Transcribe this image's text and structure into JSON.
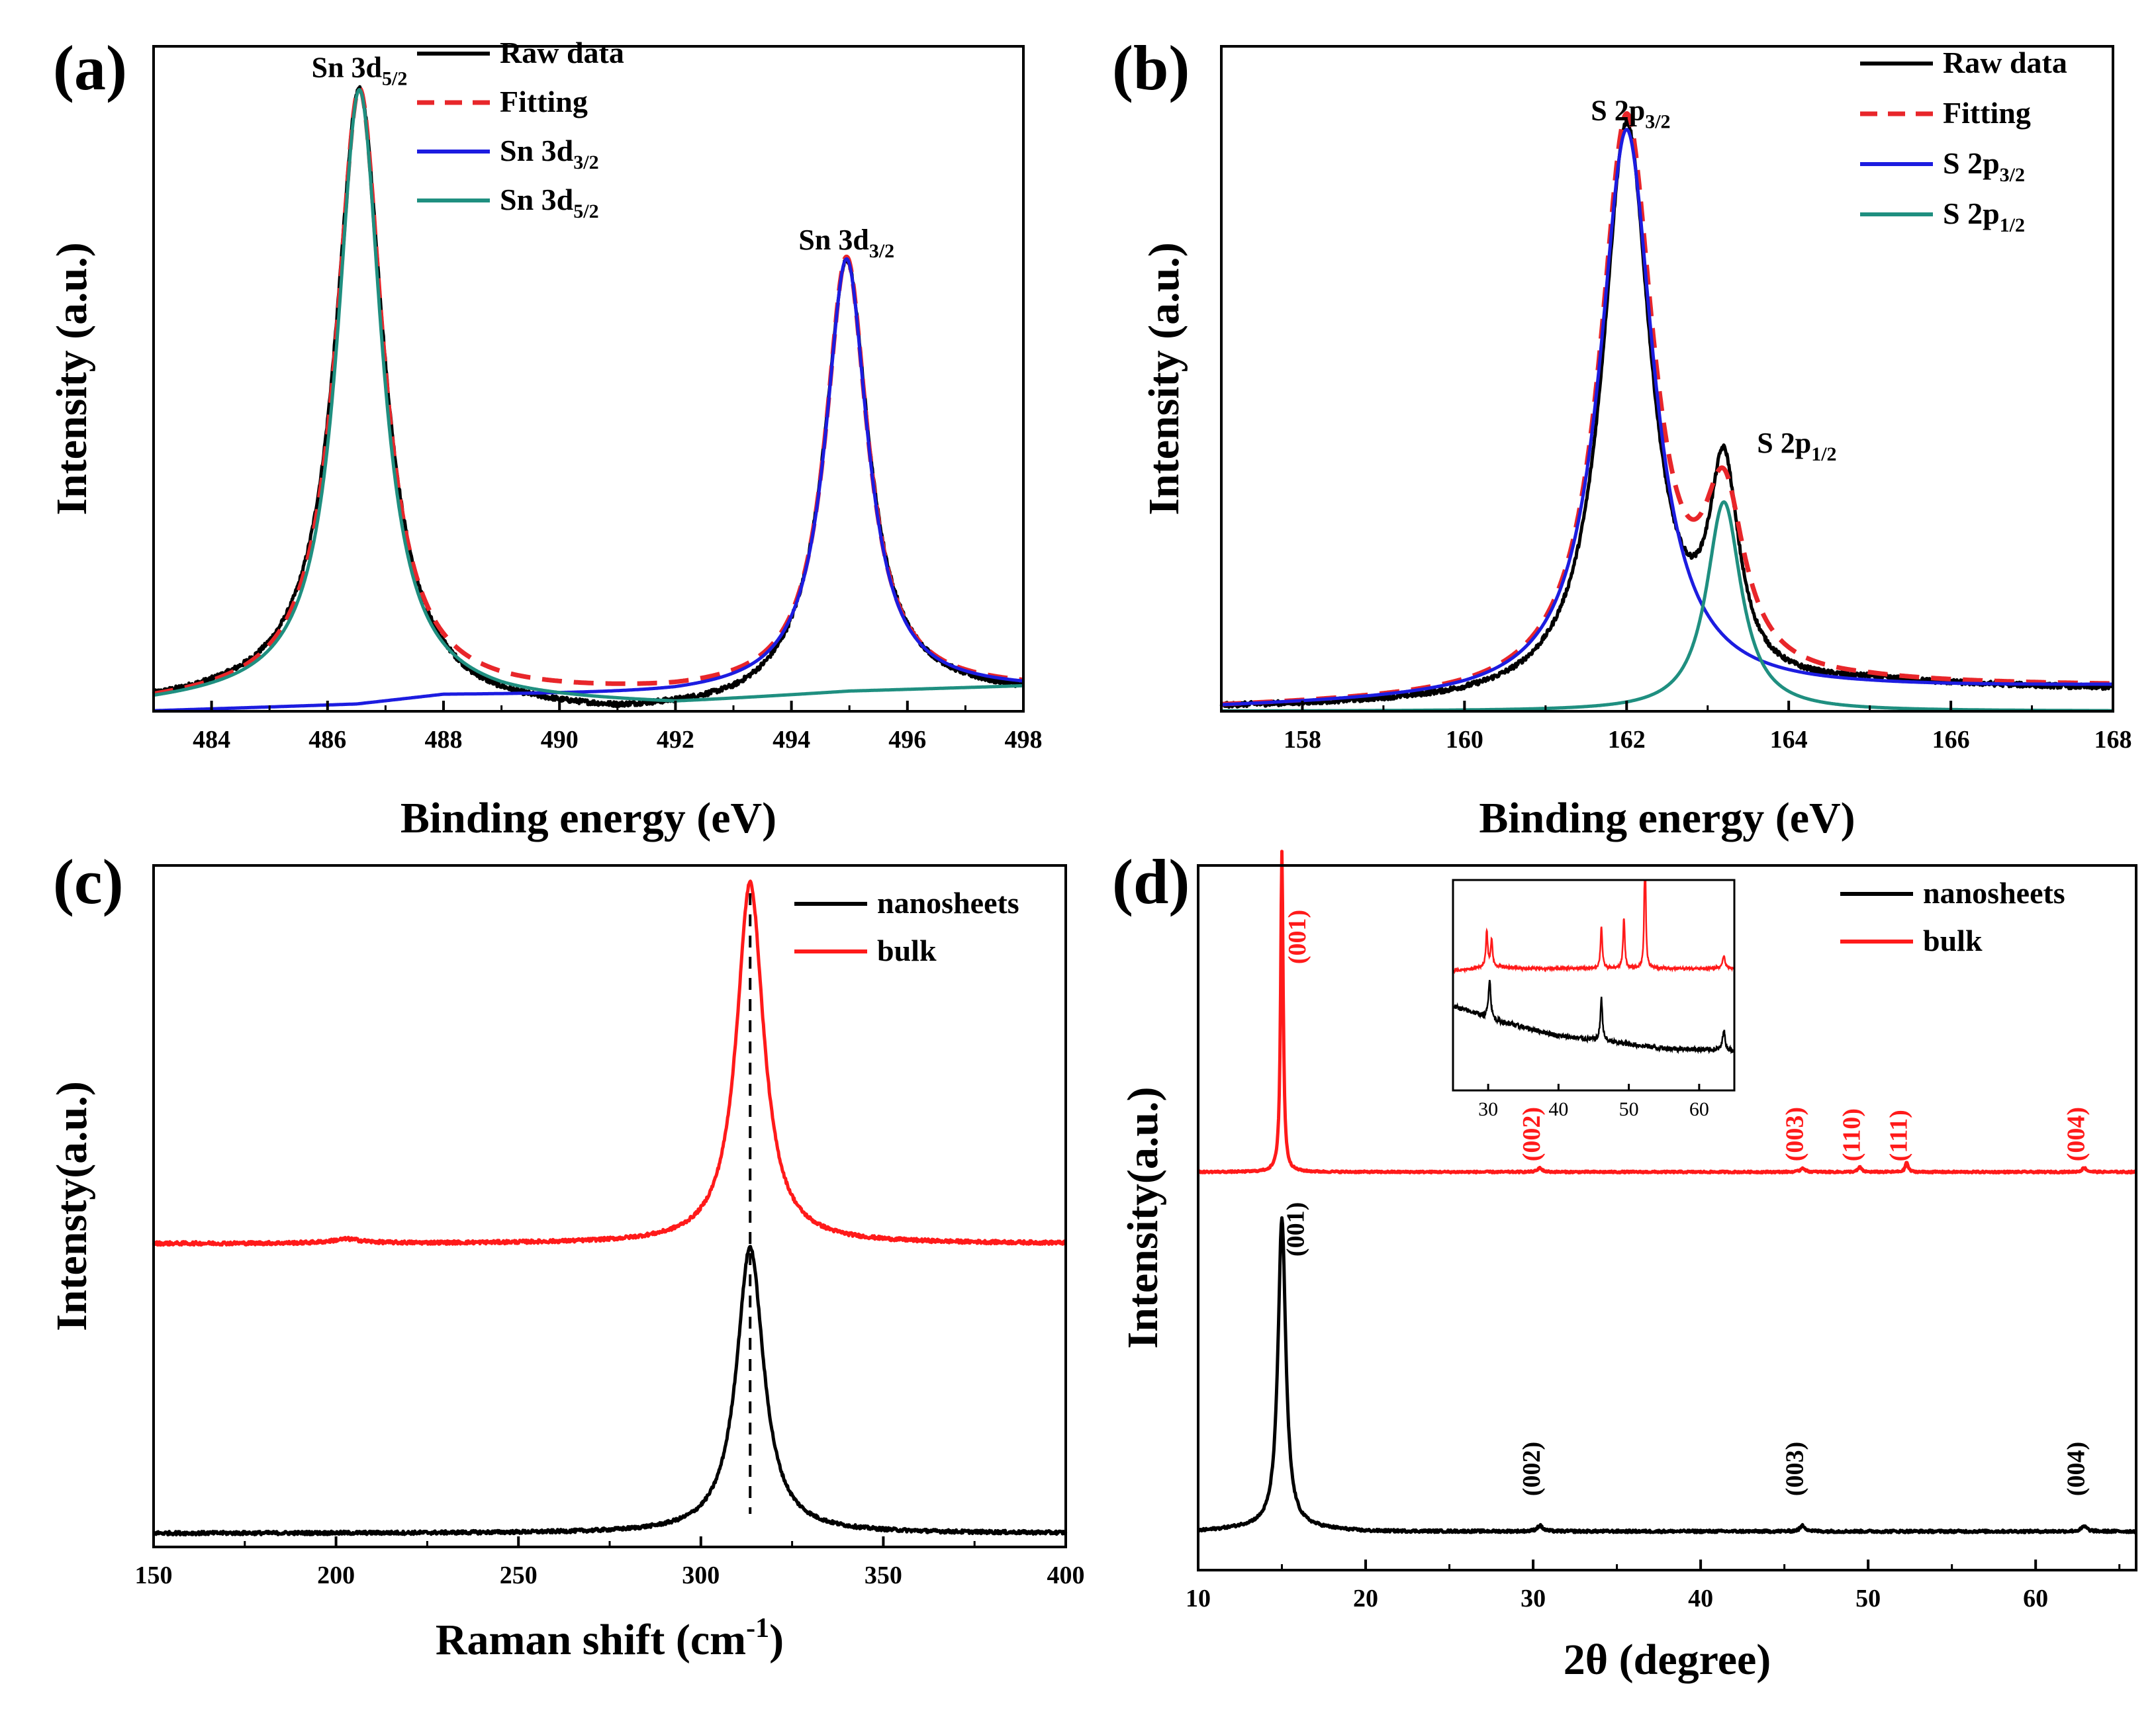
{
  "colors": {
    "raw": "#000000",
    "fitting": "#e8262a",
    "blue": "#1c1ce0",
    "teal": "#1f8f80",
    "nanosheets": "#000000",
    "bulk": "#ff1a1a",
    "axis": "#000000"
  },
  "chart_data": [
    {
      "id": "a",
      "panel_label": "(a)",
      "type": "line",
      "title": "",
      "xlabel": "Binding energy (eV)",
      "ylabel": "Intensity (a.u.)",
      "xlim": [
        483,
        498
      ],
      "ylim": [
        0,
        1.08
      ],
      "xticks": [
        484,
        486,
        488,
        490,
        492,
        494,
        496,
        498
      ],
      "xticklabels": [
        "484",
        "486",
        "488",
        "490",
        "492",
        "494",
        "496",
        "498"
      ],
      "legend": {
        "position": "top-center",
        "entries": [
          {
            "main": "Raw data",
            "sub": "",
            "style": "solid",
            "color_key": "raw"
          },
          {
            "main": "Fitting",
            "sub": "",
            "style": "dashed",
            "color_key": "fitting"
          },
          {
            "main": "Sn 3d",
            "sub": "3/2",
            "style": "solid",
            "color_key": "blue"
          },
          {
            "main": "Sn 3d",
            "sub": "5/2",
            "style": "solid",
            "color_key": "teal"
          }
        ]
      },
      "annotations": [
        {
          "main": "Sn 3d",
          "sub": "5/2",
          "x": 486.55,
          "y": 1.03
        },
        {
          "main": "Sn 3d",
          "sub": "3/2",
          "x": 494.95,
          "y": 0.75
        }
      ],
      "series": [
        {
          "name": "Raw data",
          "color_key": "raw",
          "style": "solid",
          "peaks": [
            [
              486.55,
              0.98,
              0.5
            ],
            [
              494.95,
              0.7,
              0.46
            ]
          ],
          "baseline": [
            [
              483,
              0.01
            ],
            [
              486.5,
              0.03
            ],
            [
              488.5,
              0.0
            ],
            [
              491,
              -0.01
            ],
            [
              493,
              0.0
            ],
            [
              495,
              0.03
            ],
            [
              498,
              0.025
            ]
          ],
          "noise": 0.004
        },
        {
          "name": "Fitting",
          "color_key": "fitting",
          "style": "dashed",
          "peaks": [
            [
              486.55,
              0.98,
              0.48
            ],
            [
              494.95,
              0.7,
              0.44
            ]
          ],
          "baseline": [
            [
              483,
              0.01
            ],
            [
              486.5,
              0.03
            ],
            [
              489,
              0.025
            ],
            [
              492,
              0.025
            ],
            [
              495,
              0.035
            ],
            [
              498,
              0.035
            ]
          ],
          "noise": 0
        },
        {
          "name": "Sn 3d3/2",
          "color_key": "blue",
          "style": "solid",
          "peaks": [
            [
              494.95,
              0.7,
              0.44
            ]
          ],
          "baseline": [
            [
              483,
              0.0
            ],
            [
              486.5,
              0.01
            ],
            [
              488,
              0.025
            ],
            [
              492,
              0.025
            ],
            [
              495,
              0.035
            ],
            [
              498,
              0.035
            ]
          ],
          "noise": 0
        },
        {
          "name": "Sn 3d5/2",
          "color_key": "teal",
          "style": "solid",
          "peaks": [
            [
              486.55,
              0.98,
              0.46
            ]
          ],
          "baseline": [
            [
              483,
              0.01
            ],
            [
              486.5,
              0.03
            ],
            [
              489,
              0.015
            ],
            [
              492,
              0.01
            ],
            [
              495,
              0.03
            ],
            [
              498,
              0.04
            ]
          ],
          "noise": 0
        }
      ]
    },
    {
      "id": "b",
      "panel_label": "(b)",
      "type": "line",
      "title": "",
      "xlabel": "Binding energy (eV)",
      "ylabel": "Intensity (a.u.)",
      "xlim": [
        157,
        168
      ],
      "ylim": [
        0,
        1.08
      ],
      "xticks": [
        158,
        160,
        162,
        164,
        166,
        168
      ],
      "xticklabels": [
        "158",
        "160",
        "162",
        "164",
        "166",
        "168"
      ],
      "legend": {
        "position": "top-right",
        "entries": [
          {
            "main": "Raw data",
            "sub": "",
            "style": "solid",
            "color_key": "raw"
          },
          {
            "main": "Fitting",
            "sub": "",
            "style": "dashed",
            "color_key": "fitting"
          },
          {
            "main": "S 2p",
            "sub": "3/2",
            "style": "solid",
            "color_key": "blue"
          },
          {
            "main": "S 2p",
            "sub": "1/2",
            "style": "solid",
            "color_key": "teal"
          }
        ]
      },
      "annotations": [
        {
          "main": "S 2p",
          "sub": "3/2",
          "x": 162.05,
          "y": 0.96
        },
        {
          "main": "S 2p",
          "sub": "1/2",
          "x": 164.1,
          "y": 0.42
        }
      ],
      "series": [
        {
          "name": "Raw data",
          "color_key": "raw",
          "style": "solid",
          "peaks": [
            [
              162.0,
              0.93,
              0.36
            ],
            [
              163.2,
              0.33,
              0.22
            ]
          ],
          "baseline": [
            [
              157,
              0.005
            ],
            [
              160,
              0.01
            ],
            [
              163,
              0.02
            ],
            [
              165,
              0.04
            ],
            [
              168,
              0.035
            ]
          ],
          "noise": 0.004
        },
        {
          "name": "Fitting",
          "color_key": "fitting",
          "style": "dashed",
          "peaks": [
            [
              162.0,
              0.93,
              0.4
            ],
            [
              163.2,
              0.27,
              0.3
            ]
          ],
          "baseline": [
            [
              157,
              0.005
            ],
            [
              160,
              0.015
            ],
            [
              163,
              0.03
            ],
            [
              165,
              0.04
            ],
            [
              168,
              0.04
            ]
          ],
          "noise": 0
        },
        {
          "name": "S 2p3/2",
          "color_key": "blue",
          "style": "solid",
          "peaks": [
            [
              162.0,
              0.92,
              0.4
            ]
          ],
          "baseline": [
            [
              157,
              0.005
            ],
            [
              160,
              0.015
            ],
            [
              163,
              0.03
            ],
            [
              165,
              0.035
            ],
            [
              168,
              0.04
            ]
          ],
          "noise": 0
        },
        {
          "name": "S 2p1/2",
          "color_key": "teal",
          "style": "solid",
          "peaks": [
            [
              163.2,
              0.34,
              0.26
            ]
          ],
          "baseline": [
            [
              157,
              0.0
            ],
            [
              160,
              0.0
            ],
            [
              163,
              0.0
            ],
            [
              168,
              0.0
            ]
          ],
          "noise": 0
        }
      ]
    },
    {
      "id": "c",
      "panel_label": "(c)",
      "type": "line",
      "title": "",
      "xlabel": "Raman shift (cm",
      "xlabel_sup": "-1",
      "xlabel_end": ")",
      "ylabel": "Intensty(a.u.)",
      "xlim": [
        150,
        400
      ],
      "ylim": [
        0,
        1.0
      ],
      "xticks": [
        150,
        200,
        250,
        300,
        350,
        400
      ],
      "xticklabels": [
        "150",
        "200",
        "250",
        "300",
        "350",
        "400"
      ],
      "reference_line_x": 313.5,
      "legend": {
        "position": "top-right",
        "entries": [
          {
            "main": "nanosheets",
            "sub": "",
            "style": "solid",
            "color_key": "nanosheets"
          },
          {
            "main": "bulk",
            "sub": "",
            "style": "solid",
            "color_key": "bulk"
          }
        ]
      },
      "annotations": [],
      "series": [
        {
          "name": "nanosheets",
          "color_key": "nanosheets",
          "style": "solid",
          "peaks": [
            [
              313.5,
              0.42,
              4.5
            ]
          ],
          "baseline": [
            [
              150,
              0.02
            ],
            [
              400,
              0.02
            ]
          ],
          "noise": 0.0025
        },
        {
          "name": "bulk",
          "color_key": "bulk",
          "style": "solid",
          "peaks": [
            [
              313.5,
              0.53,
              4.5
            ],
            [
              203,
              0.006,
              5
            ]
          ],
          "baseline": [
            [
              150,
              0.445
            ],
            [
              400,
              0.445
            ]
          ],
          "noise": 0.0025
        }
      ]
    },
    {
      "id": "d",
      "panel_label": "(d)",
      "type": "line",
      "title": "",
      "xlabel": "2θ (degree)",
      "ylabel": "Intensity(a.u.)",
      "xlim": [
        10,
        66
      ],
      "ylim": [
        0,
        1.0
      ],
      "xticks": [
        10,
        20,
        30,
        40,
        50,
        60
      ],
      "xticklabels": [
        "10",
        "20",
        "30",
        "40",
        "50",
        "60"
      ],
      "legend": {
        "position": "top-right",
        "entries": [
          {
            "main": "nanosheets",
            "sub": "",
            "style": "solid",
            "color_key": "nanosheets"
          },
          {
            "main": "bulk",
            "sub": "",
            "style": "solid",
            "color_key": "bulk"
          }
        ]
      },
      "hkl_labels": [
        {
          "text": "(001)",
          "x": 16.4,
          "y": 0.86,
          "color_key": "bulk"
        },
        {
          "text": "(002)",
          "x": 30.4,
          "y": 0.58,
          "color_key": "bulk"
        },
        {
          "text": "(003)",
          "x": 46.1,
          "y": 0.58,
          "color_key": "bulk"
        },
        {
          "text": "(110)",
          "x": 49.5,
          "y": 0.58,
          "color_key": "bulk"
        },
        {
          "text": "(111)",
          "x": 52.3,
          "y": 0.58,
          "color_key": "bulk"
        },
        {
          "text": "(004)",
          "x": 62.9,
          "y": 0.58,
          "color_key": "bulk"
        },
        {
          "text": "(001)",
          "x": 16.3,
          "y": 0.445,
          "color_key": "nanosheets"
        },
        {
          "text": "(002)",
          "x": 30.4,
          "y": 0.105,
          "color_key": "nanosheets"
        },
        {
          "text": "(003)",
          "x": 46.1,
          "y": 0.105,
          "color_key": "nanosheets"
        },
        {
          "text": "(004)",
          "x": 62.9,
          "y": 0.105,
          "color_key": "nanosheets"
        }
      ],
      "series": [
        {
          "name": "nanosheets",
          "color_key": "nanosheets",
          "style": "solid",
          "peaks": [
            [
              15.0,
              0.44,
              0.28
            ],
            [
              30.4,
              0.008,
              0.2
            ],
            [
              46.1,
              0.008,
              0.2
            ],
            [
              62.9,
              0.007,
              0.2
            ]
          ],
          "baseline": [
            [
              10,
              0.055
            ],
            [
              13,
              0.06
            ],
            [
              16,
              0.06
            ],
            [
              20,
              0.055
            ],
            [
              66,
              0.055
            ]
          ],
          "noise": 0.0018
        },
        {
          "name": "bulk",
          "color_key": "bulk",
          "style": "solid",
          "peaks": [
            [
              15.0,
              0.455,
              0.09
            ],
            [
              30.4,
              0.006,
              0.15
            ],
            [
              46.1,
              0.006,
              0.15
            ],
            [
              49.5,
              0.007,
              0.12
            ],
            [
              52.3,
              0.014,
              0.1
            ],
            [
              62.9,
              0.006,
              0.15
            ]
          ],
          "baseline": [
            [
              10,
              0.565
            ],
            [
              66,
              0.565
            ]
          ],
          "noise": 0.0012
        }
      ],
      "inset": {
        "xlim": [
          25,
          65
        ],
        "ylim": [
          0,
          1.0
        ],
        "xticks": [
          30,
          40,
          50,
          60
        ],
        "xticklabels": [
          "30",
          "40",
          "50",
          "60"
        ],
        "series": [
          {
            "name": "bulk",
            "color_key": "bulk",
            "style": "solid",
            "peaks": [
              [
                29.8,
                0.17,
                0.15
              ],
              [
                30.5,
                0.13,
                0.15
              ],
              [
                46.1,
                0.2,
                0.15
              ],
              [
                49.3,
                0.24,
                0.15
              ],
              [
                52.3,
                0.64,
                0.12
              ],
              [
                63.5,
                0.06,
                0.2
              ]
            ],
            "baseline": [
              [
                25,
                0.57
              ],
              [
                27,
                0.575
              ],
              [
                30,
                0.59
              ],
              [
                35,
                0.58
              ],
              [
                45,
                0.58
              ],
              [
                65,
                0.58
              ]
            ],
            "noise": 0.006
          },
          {
            "name": "nanosheets",
            "color_key": "nanosheets",
            "style": "solid",
            "peaks": [
              [
                30.2,
                0.19,
                0.2
              ],
              [
                46.1,
                0.2,
                0.18
              ],
              [
                63.5,
                0.1,
                0.2
              ]
            ],
            "baseline": [
              [
                25,
                0.4
              ],
              [
                28,
                0.37
              ],
              [
                30,
                0.34
              ],
              [
                35,
                0.3
              ],
              [
                40,
                0.26
              ],
              [
                45,
                0.24
              ],
              [
                55,
                0.2
              ],
              [
                65,
                0.19
              ]
            ],
            "noise": 0.012
          }
        ]
      }
    }
  ]
}
